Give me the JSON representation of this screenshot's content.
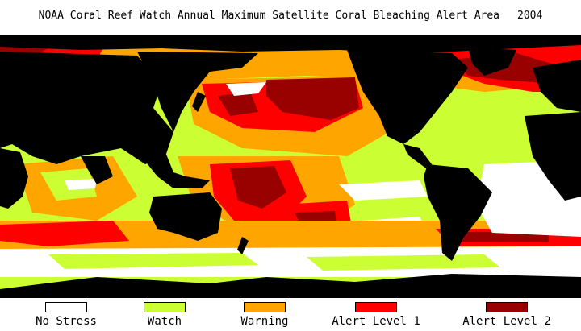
{
  "title": {
    "text": "NOAA Coral Reef Watch Annual Maximum Satellite Coral Bleaching Alert Area",
    "year": "2004"
  },
  "map": {
    "land_color": "#000000",
    "ice_color": "#000000"
  },
  "legend": [
    {
      "label": "No Stress",
      "color": "#ffffff"
    },
    {
      "label": "Watch",
      "color": "#ccff33"
    },
    {
      "label": "Warning",
      "color": "#ffa500"
    },
    {
      "label": "Alert Level 1",
      "color": "#ff0000"
    },
    {
      "label": "Alert Level 2",
      "color": "#990000"
    }
  ]
}
